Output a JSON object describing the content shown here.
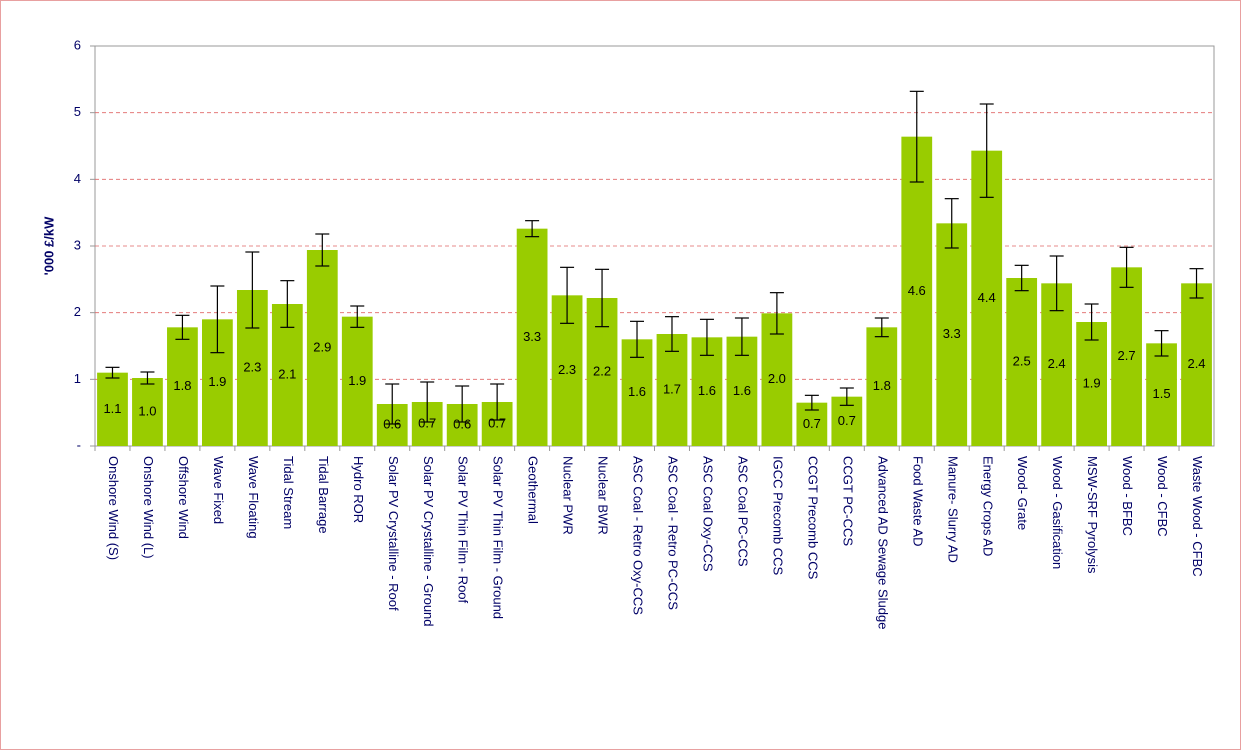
{
  "chart_data": {
    "type": "bar",
    "y_label": "'000 £/kW",
    "categories": [
      "Onshore Wind (S)",
      "Onshore Wind (L)",
      "Offshore Wind",
      "Wave Fixed",
      "Wave Floating",
      "Tidal Stream",
      "Tidal Barrage",
      "Hydro ROR",
      "Solar PV Crystalline - Roof",
      "Solar PV Crystalline - Ground",
      "Solar PV Thin Film - Roof",
      "Solar PV Thin Film - Ground",
      "Geothermal",
      "Nuclear PWR",
      "Nuclear BWR",
      "ASC Coal - Retro Oxy-CCS",
      "ASC Coal - Retro PC-CCS",
      "ASC Coal Oxy-CCS",
      "ASC Coal PC-CCS",
      "IGCC Precomb CCS",
      "CCGT Precomb CCS",
      "CCGT PC-CCS",
      "Advanced AD Sewage Sludge",
      "Food Waste AD",
      "Manure- Slurry AD",
      "Energy Crops AD",
      "Wood- Grate",
      "Wood - Gasification",
      "MSW-SRF Pyrolysis",
      "Wood - BFBC",
      "Wood - CFBC",
      "Waste Wood - CFBC"
    ],
    "values": [
      1.1,
      1.02,
      1.78,
      1.9,
      2.34,
      2.13,
      2.94,
      1.94,
      0.63,
      0.66,
      0.63,
      0.66,
      3.26,
      2.26,
      2.22,
      1.6,
      1.68,
      1.63,
      1.64,
      1.99,
      0.65,
      0.74,
      1.78,
      4.64,
      3.34,
      4.43,
      2.52,
      2.44,
      1.86,
      2.68,
      1.54,
      2.44
    ],
    "value_labels": [
      "1.1",
      "1.0",
      "1.8",
      "1.9",
      "2.3",
      "2.1",
      "2.9",
      "1.9",
      "0.6",
      "0.7",
      "0.6",
      "0.7",
      "3.3",
      "2.3",
      "2.2",
      "1.6",
      "1.7",
      "1.6",
      "1.6",
      "2.0",
      "0.7",
      "0.7",
      "1.8",
      "4.6",
      "3.3",
      "4.4",
      "2.5",
      "2.4",
      "1.9",
      "2.7",
      "1.5",
      "2.4"
    ],
    "errors": [
      0.08,
      0.09,
      0.18,
      0.5,
      0.57,
      0.35,
      0.24,
      0.16,
      0.3,
      0.3,
      0.27,
      0.27,
      0.12,
      0.42,
      0.43,
      0.27,
      0.26,
      0.27,
      0.28,
      0.31,
      0.11,
      0.13,
      0.14,
      0.68,
      0.37,
      0.7,
      0.19,
      0.41,
      0.27,
      0.3,
      0.19,
      0.22
    ],
    "color": "#99cc00",
    "ylim": [
      0,
      6
    ],
    "yticks": [
      {
        "value": 0,
        "label": "-"
      },
      1,
      2,
      3,
      4,
      5,
      6
    ],
    "grid": true
  }
}
